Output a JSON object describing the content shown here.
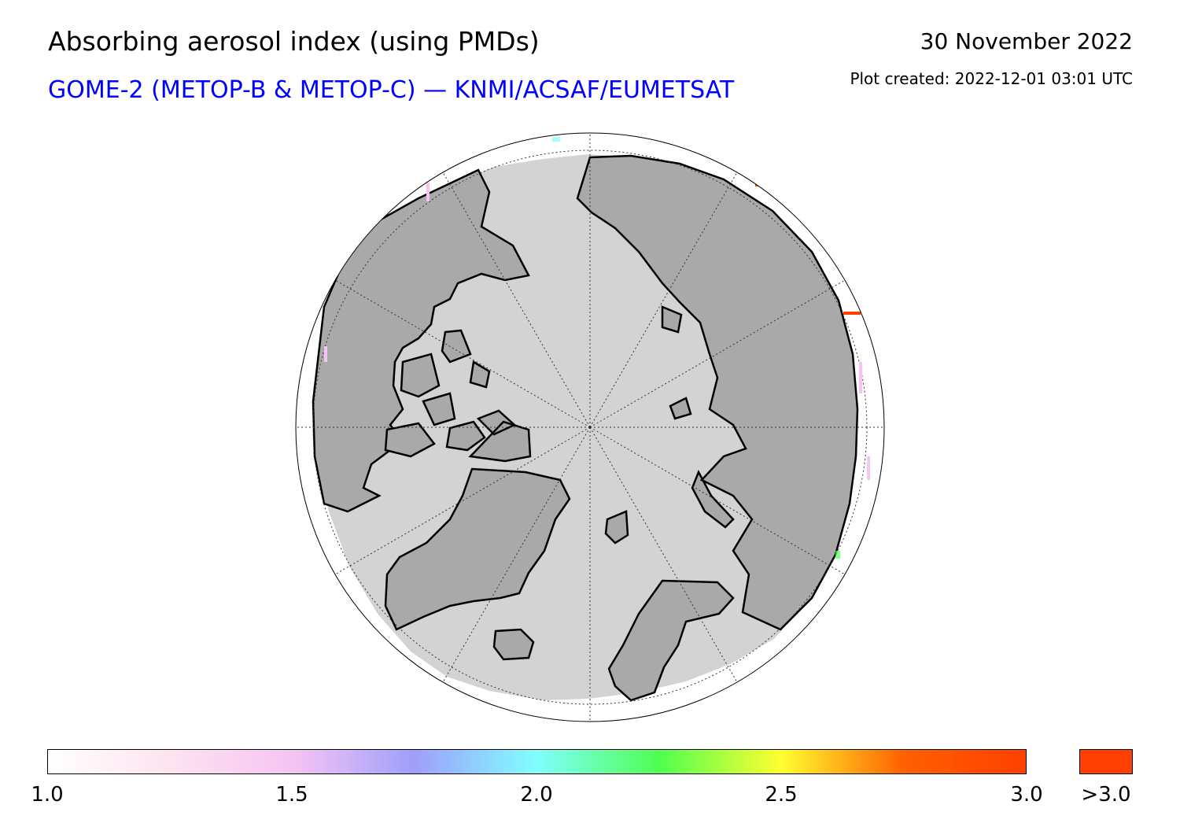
{
  "header": {
    "title": "Absorbing aerosol index (using PMDs)",
    "subtitle": "GOME-2 (METOP-B & METOP-C) — KNMI/ACSAF/EUMETSAT",
    "date": "30 November 2022",
    "created": "Plot created: 2022-12-01 03:01 UTC"
  },
  "map": {
    "projection": "north-polar-stereographic",
    "ocean_color": "#d3d3d3",
    "land_color": "#a9a9a9",
    "no_data_color": "#ffffff",
    "coastline_color": "#000000"
  },
  "colorbar": {
    "ticks": [
      "1.0",
      "1.5",
      "2.0",
      "2.5",
      "3.0"
    ],
    "range": [
      1.0,
      3.0
    ],
    "over_label": ">3.0",
    "over_color": "#ff4000",
    "stops": [
      "#ffffff",
      "#fde3ef",
      "#f6c4f3",
      "#9e9ffb",
      "#80ffff",
      "#50ff50",
      "#ffff30",
      "#ff6000",
      "#ff4000"
    ]
  }
}
